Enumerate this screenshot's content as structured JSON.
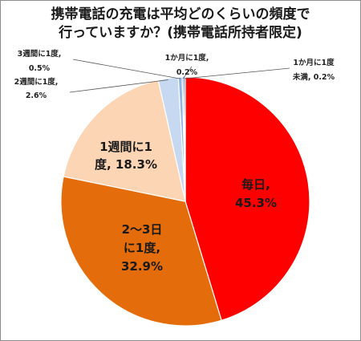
{
  "chart_data": {
    "type": "pie",
    "title": [
      "携帯電話の充電は平均どのくらいの頻度で",
      "行っていますか？(携帯電話所持者限定)"
    ],
    "slices": [
      {
        "label": [
          "毎日,",
          "45.3%"
        ],
        "value": 45.3,
        "color": "#ff0000",
        "label_color": "#1a1a1a"
      },
      {
        "label": [
          "2〜3日",
          "に1度,",
          "32.9%"
        ],
        "value": 32.9,
        "color": "#e46c0a",
        "label_color": "#1a1a1a"
      },
      {
        "label": [
          "1週間に1",
          "度, 18.3%"
        ],
        "value": 18.3,
        "color": "#fcd5b5",
        "label_color": "#1a1a1a"
      },
      {
        "label": [
          "2週間に1度,",
          "2.6%"
        ],
        "value": 2.6,
        "color": "#c6d9f1",
        "label_color": "#222222"
      },
      {
        "label": [
          "3週間に1度,",
          "0.5%"
        ],
        "value": 0.5,
        "color": "#8eb4e3",
        "label_color": "#222222"
      },
      {
        "label": [
          "1か月に1度,",
          "0.2%"
        ],
        "value": 0.2,
        "color": "#558ed5",
        "label_color": "#222222"
      },
      {
        "label": [
          "1か月に1度",
          "未満, 0.2%"
        ],
        "value": 0.2,
        "color": "#1f497d",
        "label_color": "#222222"
      }
    ]
  }
}
